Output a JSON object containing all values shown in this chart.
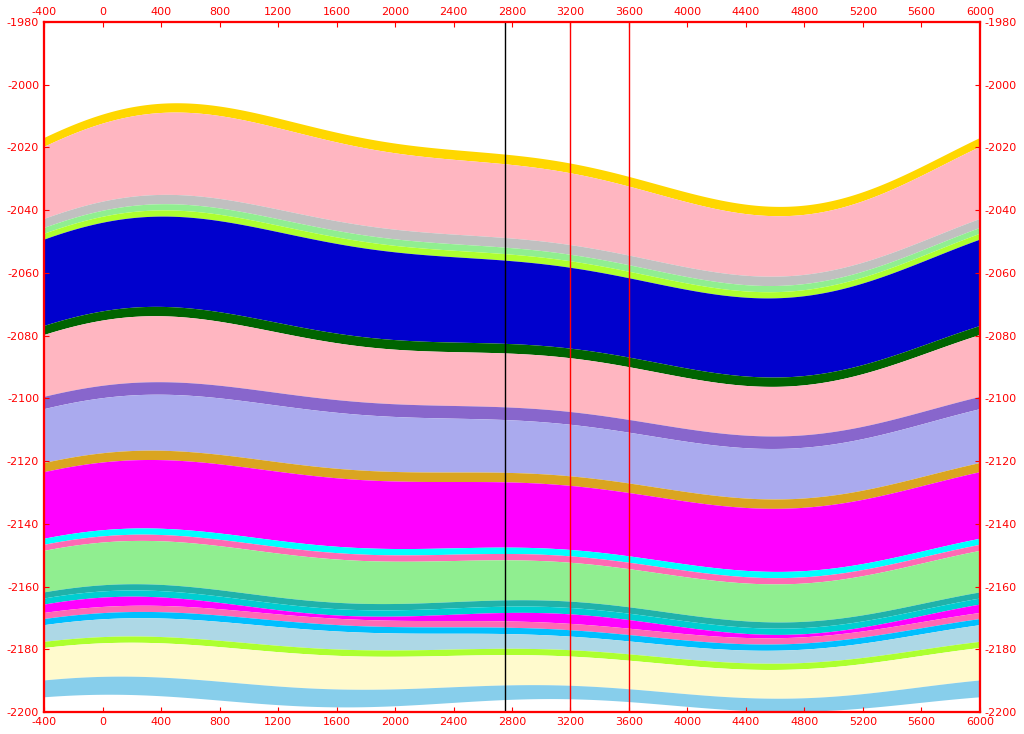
{
  "x_min": -400,
  "x_max": 6000,
  "y_min": -2200,
  "y_max": -1980,
  "x_ticks": [
    -400,
    0,
    400,
    800,
    1200,
    1600,
    2000,
    2400,
    2800,
    3200,
    3600,
    4000,
    4400,
    4800,
    5200,
    5600,
    6000
  ],
  "y_ticks": [
    -1980,
    -2000,
    -2020,
    -2040,
    -2060,
    -2080,
    -2100,
    -2120,
    -2140,
    -2160,
    -2180,
    -2200
  ],
  "vline_black": 2750,
  "vlines_red": [
    3200,
    3600
  ],
  "axis_color": "red",
  "background": "white"
}
